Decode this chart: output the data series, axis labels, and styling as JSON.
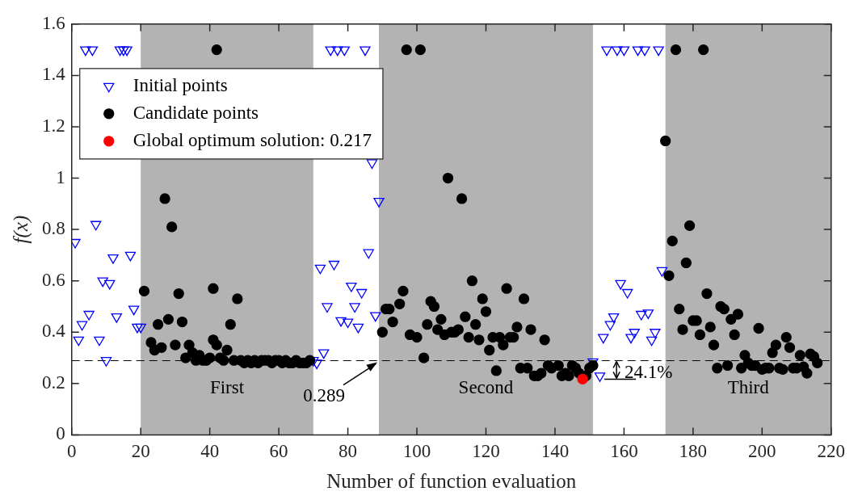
{
  "chart_data": {
    "type": "scatter",
    "xlabel": "Number of function evaluation",
    "ylabel": "f(x)",
    "xlim": [
      0,
      220
    ],
    "xticks": [
      0,
      20,
      40,
      60,
      80,
      100,
      120,
      140,
      160,
      180,
      200,
      220
    ],
    "ylim": [
      0,
      1.6
    ],
    "yticks": [
      0,
      0.2,
      0.4,
      0.6,
      0.8,
      1,
      1.2,
      1.4,
      1.6
    ],
    "grid": false,
    "legend": "top left",
    "series": [
      {
        "name": "Initial points",
        "color": "#0000ff",
        "marker": "triangle",
        "x": [
          1,
          2,
          3,
          4,
          5,
          6,
          7,
          8,
          9,
          10,
          11,
          12,
          13,
          14,
          15,
          16,
          17,
          18,
          19,
          20,
          70,
          71,
          72,
          73,
          74,
          75,
          76,
          77,
          78,
          79,
          80,
          81,
          82,
          83,
          84,
          85,
          86,
          87,
          88,
          89,
          151,
          153,
          154,
          155,
          156,
          157,
          158,
          159,
          160,
          161,
          162,
          163,
          164,
          165,
          166,
          167,
          168,
          169,
          170,
          171
        ],
        "values": [
          0.75,
          0.37,
          0.43,
          1.5,
          0.47,
          1.5,
          0.82,
          0.37,
          0.6,
          0.29,
          0.59,
          0.69,
          0.46,
          1.5,
          1.5,
          1.5,
          0.7,
          0.49,
          0.42,
          0.42,
          0.29,
          0.28,
          0.65,
          0.32,
          0.5,
          1.5,
          0.665,
          1.5,
          0.445,
          1.5,
          0.44,
          0.58,
          0.5,
          0.42,
          0.555,
          1.5,
          0.71,
          1.06,
          0.465,
          0.91,
          0.285,
          0.23,
          0.38,
          1.5,
          0.43,
          0.46,
          1.5,
          0.59,
          1.5,
          0.555,
          0.38,
          0.4,
          1.5,
          0.47,
          1.5,
          0.475,
          0.37,
          0.4,
          1.5,
          0.64
        ]
      },
      {
        "name": "Candidate points",
        "color": "#000000",
        "marker": "circle",
        "x": [
          21,
          23,
          24,
          25,
          26,
          27,
          28,
          29,
          30,
          31,
          32,
          33,
          34,
          35,
          36,
          37,
          38,
          39,
          40,
          41,
          41,
          42,
          42,
          43,
          44,
          45,
          46,
          47,
          48,
          49,
          50,
          51,
          52,
          53,
          54,
          55,
          56,
          57,
          58,
          59,
          60,
          61,
          62,
          63,
          64,
          65,
          66,
          67,
          68,
          69,
          90,
          91,
          92,
          93,
          95,
          96,
          97,
          98,
          100,
          101,
          102,
          103,
          104,
          105,
          106,
          107,
          108,
          109,
          110,
          111,
          112,
          113,
          114,
          115,
          116,
          117,
          118,
          119,
          120,
          121,
          122,
          123,
          124,
          125,
          126,
          127,
          128,
          129,
          130,
          131,
          132,
          133,
          134,
          135,
          136,
          137,
          138,
          139,
          141,
          142,
          143,
          144,
          145,
          146,
          147,
          149,
          150,
          151,
          172,
          173,
          174,
          175,
          176,
          177,
          178,
          179,
          180,
          181,
          182,
          183,
          184,
          185,
          186,
          187,
          188,
          189,
          190,
          191,
          192,
          193,
          194,
          195,
          196,
          197,
          198,
          199,
          200,
          201,
          202,
          203,
          204,
          205,
          206,
          207,
          208,
          209,
          210,
          211,
          212,
          213,
          214,
          215,
          216
        ],
        "values": [
          0.56,
          0.36,
          0.33,
          0.43,
          0.34,
          0.92,
          0.45,
          0.81,
          0.35,
          0.55,
          0.44,
          0.3,
          0.35,
          0.32,
          0.29,
          0.31,
          0.29,
          0.29,
          0.3,
          0.37,
          0.57,
          1.5,
          0.35,
          0.3,
          0.29,
          0.33,
          0.43,
          0.29,
          0.53,
          0.29,
          0.28,
          0.29,
          0.28,
          0.29,
          0.28,
          0.29,
          0.29,
          0.29,
          0.28,
          0.29,
          0.29,
          0.28,
          0.29,
          0.28,
          0.28,
          0.29,
          0.28,
          0.28,
          0.28,
          0.29,
          0.4,
          0.49,
          0.49,
          0.44,
          0.51,
          0.56,
          1.5,
          0.39,
          0.38,
          1.5,
          0.3,
          0.43,
          0.52,
          0.5,
          0.41,
          0.45,
          0.39,
          1.0,
          0.4,
          0.4,
          0.41,
          0.92,
          0.46,
          0.38,
          0.6,
          0.43,
          0.37,
          0.53,
          0.48,
          0.33,
          0.38,
          0.25,
          0.38,
          0.35,
          0.57,
          0.38,
          0.38,
          0.42,
          0.26,
          0.53,
          0.26,
          0.41,
          0.23,
          0.23,
          0.24,
          0.37,
          0.27,
          0.26,
          0.27,
          0.23,
          0.24,
          0.23,
          0.27,
          0.26,
          0.24,
          0.23,
          0.26,
          0.27,
          1.145,
          0.62,
          0.755,
          1.5,
          0.49,
          0.41,
          0.67,
          0.815,
          0.445,
          0.445,
          0.39,
          1.5,
          0.55,
          0.42,
          0.35,
          0.26,
          0.5,
          0.49,
          0.27,
          0.45,
          0.39,
          0.47,
          0.26,
          0.31,
          0.28,
          0.27,
          0.27,
          0.415,
          0.255,
          0.26,
          0.26,
          0.32,
          0.35,
          0.26,
          0.255,
          0.38,
          0.34,
          0.26,
          0.26,
          0.31,
          0.265,
          0.24,
          0.315,
          0.305,
          0.28
        ]
      },
      {
        "name": "Global optimum solution: 0.217",
        "color": "#ff0000",
        "marker": "circle",
        "x": [
          148
        ],
        "values": [
          0.217
        ]
      }
    ],
    "bands": [
      {
        "axis": "x",
        "from": 20,
        "to": 70,
        "label": "First",
        "color": "#b3b3b3"
      },
      {
        "axis": "x",
        "from": 89,
        "to": 151,
        "label": "Second",
        "color": "#b3b3b3"
      },
      {
        "axis": "x",
        "from": 172,
        "to": 220,
        "label": "Third",
        "color": "#b3b3b3"
      }
    ],
    "ref_lines": [
      {
        "axis": "y",
        "value": 0.289,
        "color": "#000000",
        "line_style": "dashed"
      }
    ],
    "annotations": [
      {
        "text": "0.289",
        "x": 89,
        "y": 0.289
      },
      "24.1%"
    ]
  }
}
